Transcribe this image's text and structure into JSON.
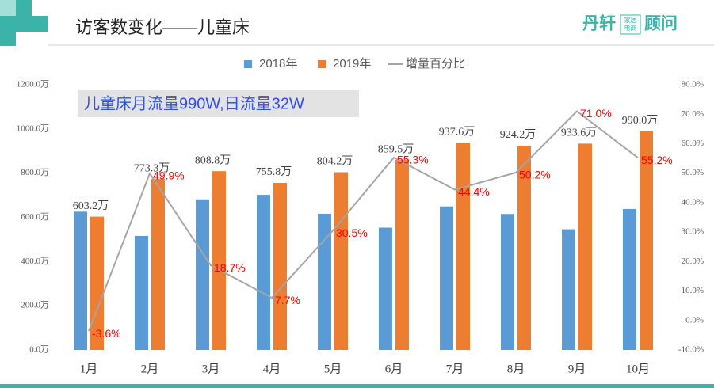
{
  "chart_data": {
    "type": "bar_line",
    "title": "访客数变化——儿童床",
    "logo": {
      "main": "丹轩",
      "box": [
        "家居",
        "电商"
      ],
      "tail": "顾问"
    },
    "annotation": "儿童床月流量990W,日流量32W",
    "categories": [
      "1月",
      "2月",
      "3月",
      "4月",
      "5月",
      "6月",
      "7月",
      "8月",
      "9月",
      "10月"
    ],
    "series": [
      {
        "name": "2018年",
        "color": "#5b9bd5",
        "type": "bar",
        "values": [
          625.7,
          515.9,
          681.4,
          701.8,
          616.2,
          553.4,
          649.3,
          615.3,
          546.0,
          637.9
        ]
      },
      {
        "name": "2019年",
        "color": "#ed7d31",
        "type": "bar",
        "values": [
          603.2,
          773.3,
          808.8,
          755.8,
          804.2,
          859.5,
          937.6,
          924.2,
          933.6,
          990.0
        ],
        "value_labels": [
          "603.2万",
          "773.3万",
          "808.8万",
          "755.8万",
          "804.2万",
          "859.5万",
          "937.6万",
          "924.2万",
          "933.6万",
          "990.0万"
        ]
      },
      {
        "name": "增量百分比",
        "color": "#a5a5a5",
        "type": "line",
        "axis": "y2",
        "values": [
          -3.6,
          49.9,
          18.7,
          7.7,
          30.5,
          55.3,
          44.4,
          50.2,
          71.0,
          55.2
        ],
        "value_labels": [
          "-3.6%",
          "49.9%",
          "18.7%",
          "7.7%",
          "30.5%",
          "55.3%",
          "44.4%",
          "50.2%",
          "71.0%",
          "55.2%"
        ],
        "label_color": "#ff0000"
      }
    ],
    "ylim": [
      0,
      1200
    ],
    "yticks": [
      {
        "value": 0,
        "label": "0.0万"
      },
      {
        "value": 200,
        "label": "200.0万"
      },
      {
        "value": 400,
        "label": "400.0万"
      },
      {
        "value": 600,
        "label": "600.0万"
      },
      {
        "value": 800,
        "label": "800.0万"
      },
      {
        "value": 1000,
        "label": "1000.0万"
      },
      {
        "value": 1200,
        "label": "1200.0万"
      }
    ],
    "y2lim": [
      -10,
      80
    ],
    "y2ticks": [
      {
        "value": -10,
        "label": "-10.0%"
      },
      {
        "value": 0,
        "label": "0.0%"
      },
      {
        "value": 10,
        "label": "10.0%"
      },
      {
        "value": 20,
        "label": "20.0%"
      },
      {
        "value": 30,
        "label": "30.0%"
      },
      {
        "value": 40,
        "label": "40.0%"
      },
      {
        "value": 50,
        "label": "50.0%"
      },
      {
        "value": 60,
        "label": "60.0%"
      },
      {
        "value": 70,
        "label": "70.0%"
      },
      {
        "value": 80,
        "label": "80.0%"
      }
    ],
    "grid": false,
    "legend": "top"
  }
}
